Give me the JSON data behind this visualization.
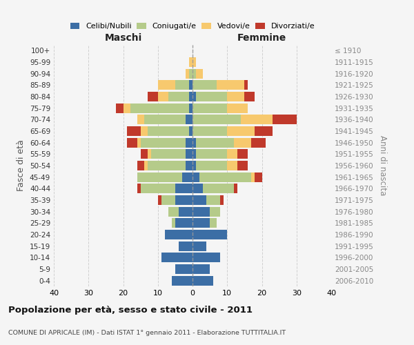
{
  "age_groups": [
    "0-4",
    "5-9",
    "10-14",
    "15-19",
    "20-24",
    "25-29",
    "30-34",
    "35-39",
    "40-44",
    "45-49",
    "50-54",
    "55-59",
    "60-64",
    "65-69",
    "70-74",
    "75-79",
    "80-84",
    "85-89",
    "90-94",
    "95-99",
    "100+"
  ],
  "birth_years": [
    "2006-2010",
    "2001-2005",
    "1996-2000",
    "1991-1995",
    "1986-1990",
    "1981-1985",
    "1976-1980",
    "1971-1975",
    "1966-1970",
    "1961-1965",
    "1956-1960",
    "1951-1955",
    "1946-1950",
    "1941-1945",
    "1936-1940",
    "1931-1935",
    "1926-1930",
    "1921-1925",
    "1916-1920",
    "1911-1915",
    "≤ 1910"
  ],
  "males": {
    "celibi": [
      6,
      5,
      9,
      4,
      8,
      5,
      4,
      5,
      5,
      3,
      2,
      2,
      2,
      1,
      2,
      1,
      1,
      1,
      0,
      0,
      0
    ],
    "coniugati": [
      0,
      0,
      0,
      0,
      0,
      1,
      3,
      4,
      10,
      13,
      11,
      10,
      13,
      12,
      12,
      17,
      6,
      4,
      1,
      0,
      0
    ],
    "vedovi": [
      0,
      0,
      0,
      0,
      0,
      0,
      0,
      0,
      0,
      0,
      1,
      1,
      1,
      2,
      2,
      2,
      3,
      5,
      1,
      1,
      0
    ],
    "divorziati": [
      0,
      0,
      0,
      0,
      0,
      0,
      0,
      1,
      1,
      0,
      2,
      2,
      3,
      4,
      0,
      2,
      3,
      0,
      0,
      0,
      0
    ]
  },
  "females": {
    "nubili": [
      6,
      5,
      8,
      4,
      10,
      5,
      5,
      4,
      3,
      2,
      1,
      1,
      1,
      0,
      0,
      0,
      1,
      0,
      0,
      0,
      0
    ],
    "coniugate": [
      0,
      0,
      0,
      0,
      0,
      2,
      3,
      4,
      9,
      15,
      9,
      9,
      11,
      10,
      14,
      10,
      9,
      7,
      1,
      0,
      0
    ],
    "vedove": [
      0,
      0,
      0,
      0,
      0,
      0,
      0,
      0,
      0,
      1,
      3,
      3,
      5,
      8,
      9,
      6,
      5,
      8,
      2,
      1,
      0
    ],
    "divorziate": [
      0,
      0,
      0,
      0,
      0,
      0,
      0,
      1,
      1,
      2,
      3,
      3,
      4,
      5,
      7,
      0,
      3,
      1,
      0,
      0,
      0
    ]
  },
  "colors": {
    "celibi": "#3c6ea5",
    "coniugati": "#b5cb8a",
    "vedovi": "#f7c96e",
    "divorziati": "#c0392b"
  },
  "title": "Popolazione per età, sesso e stato civile - 2011",
  "subtitle": "COMUNE DI APRICALE (IM) - Dati ISTAT 1° gennaio 2011 - Elaborazione TUTTITALIA.IT",
  "xlabel_left": "Maschi",
  "xlabel_right": "Femmine",
  "ylabel_left": "Fasce di età",
  "ylabel_right": "Anni di nascita",
  "xlim": 40,
  "background_color": "#f5f5f5",
  "grid_color": "#cccccc"
}
